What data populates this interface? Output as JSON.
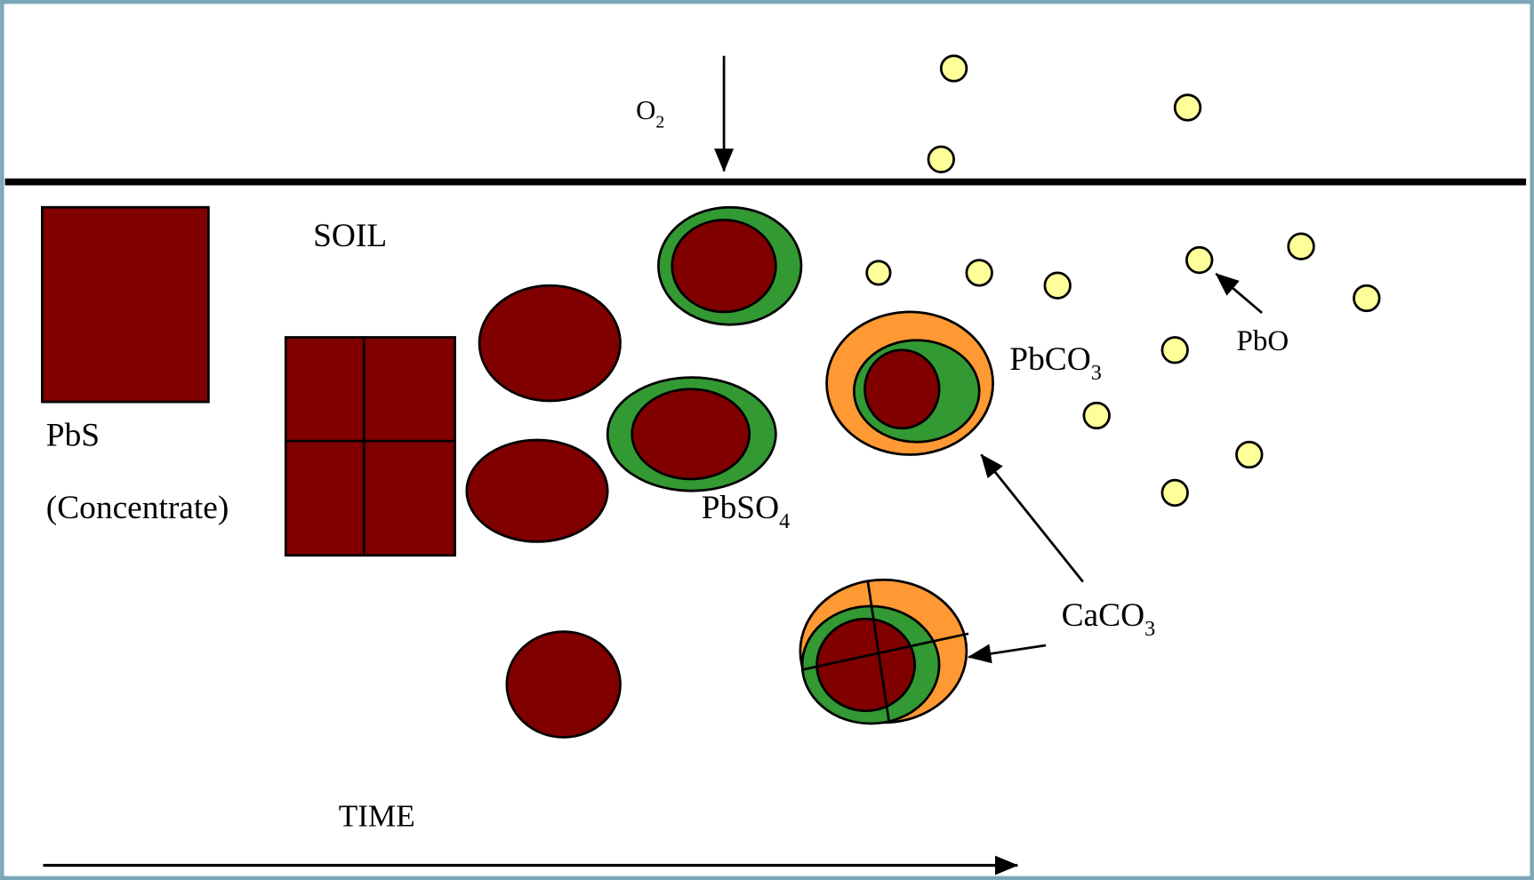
{
  "labels": {
    "o2": {
      "main": "O",
      "sub": "2"
    },
    "soil": {
      "main": "SOIL"
    },
    "pbs": {
      "main": "PbS"
    },
    "concentrate": {
      "main": "(Concentrate)"
    },
    "pbso4": {
      "main": "PbSO",
      "sub": "4"
    },
    "pbco3": {
      "main": "PbCO",
      "sub": "3"
    },
    "pbo": {
      "main": "PbO"
    },
    "caco3": {
      "main": "CaCO",
      "sub": "3"
    },
    "time": {
      "main": "TIME"
    }
  }
}
